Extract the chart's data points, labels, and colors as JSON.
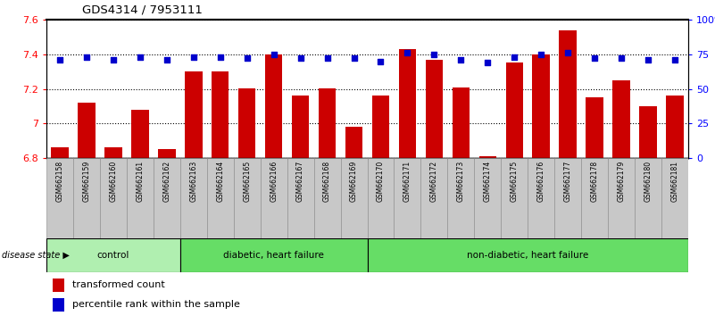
{
  "title": "GDS4314 / 7953111",
  "samples": [
    "GSM662158",
    "GSM662159",
    "GSM662160",
    "GSM662161",
    "GSM662162",
    "GSM662163",
    "GSM662164",
    "GSM662165",
    "GSM662166",
    "GSM662167",
    "GSM662168",
    "GSM662169",
    "GSM662170",
    "GSM662171",
    "GSM662172",
    "GSM662173",
    "GSM662174",
    "GSM662175",
    "GSM662176",
    "GSM662177",
    "GSM662178",
    "GSM662179",
    "GSM662180",
    "GSM662181"
  ],
  "bar_values": [
    6.86,
    7.12,
    6.86,
    7.08,
    6.85,
    7.3,
    7.3,
    7.2,
    7.4,
    7.16,
    7.2,
    6.98,
    7.16,
    7.43,
    7.37,
    7.21,
    6.81,
    7.35,
    7.4,
    7.54,
    7.15,
    7.25,
    7.1,
    7.16
  ],
  "percentile_values": [
    71,
    73,
    71,
    73,
    71,
    73,
    73,
    72,
    75,
    72,
    72,
    72,
    70,
    76,
    75,
    71,
    69,
    73,
    75,
    76,
    72,
    72,
    71,
    71
  ],
  "bar_color": "#CC0000",
  "percentile_color": "#0000CC",
  "ylim_left": [
    6.8,
    7.6
  ],
  "ylim_right": [
    0,
    100
  ],
  "yticks_left": [
    6.8,
    7.0,
    7.2,
    7.4,
    7.6
  ],
  "ytick_labels_left": [
    "6.8",
    "7",
    "7.2",
    "7.4",
    "7.6"
  ],
  "yticks_right": [
    0,
    25,
    50,
    75,
    100
  ],
  "ytick_labels_right": [
    "0",
    "25",
    "50",
    "75",
    "100%"
  ],
  "group_defs": [
    {
      "start": 0,
      "end": 5,
      "label": "control",
      "color": "#b0efb0"
    },
    {
      "start": 5,
      "end": 12,
      "label": "diabetic, heart failure",
      "color": "#66dd66"
    },
    {
      "start": 12,
      "end": 24,
      "label": "non-diabetic, heart failure",
      "color": "#66dd66"
    }
  ],
  "disease_state_label": "disease state ▶",
  "legend_items": [
    {
      "color": "#CC0000",
      "label": "transformed count"
    },
    {
      "color": "#0000CC",
      "label": "percentile rank within the sample"
    }
  ],
  "xtick_bg_color": "#c8c8c8",
  "xtick_border_color": "#888888"
}
